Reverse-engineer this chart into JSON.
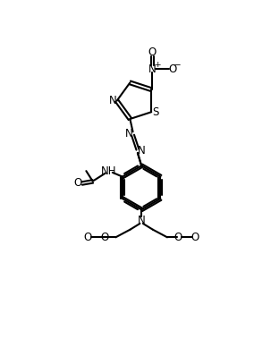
{
  "bg_color": "#ffffff",
  "line_color": "#000000",
  "lw": 1.5,
  "fs": 8.5,
  "xlim": [
    0,
    10
  ],
  "ylim": [
    0,
    14
  ],
  "figsize": [
    2.84,
    3.88
  ],
  "dpi": 100
}
